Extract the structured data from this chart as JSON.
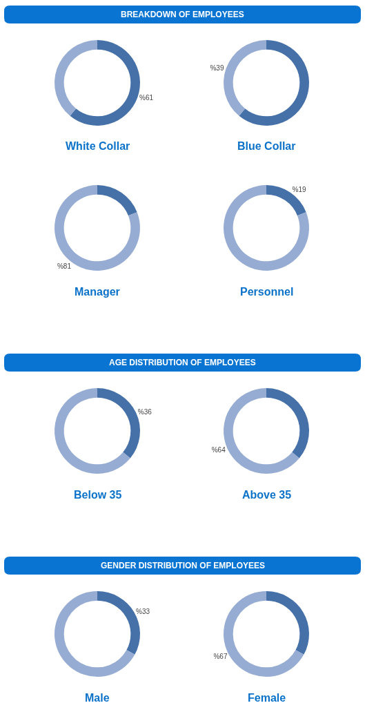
{
  "chart_data": [
    {
      "type": "other",
      "title": "BREAKDOWN OF EMPLOYEES",
      "color": "#0a74d2"
    },
    {
      "type": "donut",
      "title": "White Collar",
      "categories": [
        null,
        null
      ],
      "values": [
        61,
        39
      ],
      "colors": [
        "#4671a8",
        "#97acd3"
      ],
      "value_labels": [
        "%61",
        null
      ]
    },
    {
      "type": "donut",
      "title": "Blue Collar",
      "categories": [
        null,
        null
      ],
      "values": [
        61,
        39
      ],
      "colors": [
        "#4671a8",
        "#97acd3"
      ],
      "value_labels": [
        null,
        "%39"
      ]
    },
    {
      "type": "donut",
      "title": "Manager",
      "categories": [
        null,
        null
      ],
      "values": [
        19,
        81
      ],
      "colors": [
        "#4671a8",
        "#97acd3"
      ],
      "value_labels": [
        null,
        "%81"
      ]
    },
    {
      "type": "donut",
      "title": "Personnel",
      "categories": [
        null,
        null
      ],
      "values": [
        19,
        81
      ],
      "colors": [
        "#4671a8",
        "#97acd3"
      ],
      "value_labels": [
        "%19",
        null
      ]
    },
    {
      "type": "other",
      "title": "AGE DISTRIBUTION OF EMPLOYEES",
      "color": "#0a74d2"
    },
    {
      "type": "donut",
      "title": "Below 35",
      "categories": [
        null,
        null
      ],
      "values": [
        36,
        64
      ],
      "colors": [
        "#4671a8",
        "#97acd3"
      ],
      "value_labels": [
        "%36",
        null
      ]
    },
    {
      "type": "donut",
      "title": "Above 35",
      "categories": [
        null,
        null
      ],
      "values": [
        36,
        64
      ],
      "colors": [
        "#4671a8",
        "#97acd3"
      ],
      "value_labels": [
        null,
        "%64"
      ]
    },
    {
      "type": "other",
      "title": "GENDER DISTRIBUTION OF EMPLOYEES",
      "color": "#0a74d2"
    },
    {
      "type": "donut",
      "title": "Male",
      "categories": [
        null,
        null
      ],
      "values": [
        33,
        67
      ],
      "colors": [
        "#4671a8",
        "#97acd3"
      ],
      "value_labels": [
        "%33",
        null
      ]
    },
    {
      "type": "donut",
      "title": "Female",
      "categories": [
        null,
        null
      ],
      "values": [
        33,
        67
      ],
      "colors": [
        "#4671a8",
        "#97acd3"
      ],
      "value_labels": [
        null,
        "%67"
      ]
    }
  ]
}
